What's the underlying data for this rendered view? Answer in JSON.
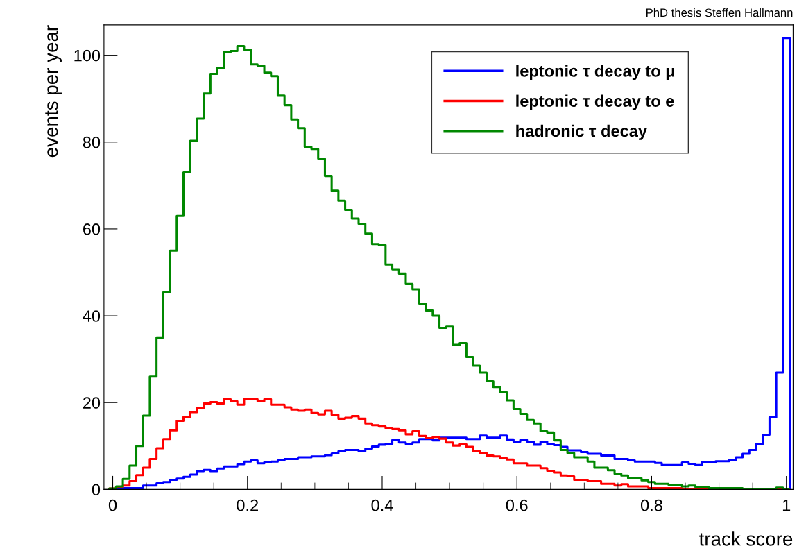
{
  "chart_data": {
    "type": "histogram",
    "xlabel": "track score",
    "ylabel": "events per year",
    "annotations": [
      "PhD thesis Steffen Hallmann"
    ],
    "bins": [
      -0.005,
      0.005,
      0.015,
      0.025,
      0.035,
      0.045,
      0.055,
      0.065,
      0.075,
      0.085,
      0.095,
      0.105,
      0.115,
      0.125,
      0.135,
      0.145,
      0.155,
      0.165,
      0.175,
      0.185,
      0.195,
      0.205,
      0.215,
      0.225,
      0.235,
      0.245,
      0.255,
      0.265,
      0.275,
      0.285,
      0.295,
      0.305,
      0.315,
      0.325,
      0.335,
      0.345,
      0.355,
      0.365,
      0.375,
      0.385,
      0.395,
      0.405,
      0.415,
      0.425,
      0.435,
      0.445,
      0.455,
      0.465,
      0.475,
      0.485,
      0.495,
      0.505,
      0.515,
      0.525,
      0.535,
      0.545,
      0.555,
      0.565,
      0.575,
      0.585,
      0.595,
      0.605,
      0.615,
      0.625,
      0.635,
      0.645,
      0.655,
      0.665,
      0.675,
      0.685,
      0.695,
      0.705,
      0.715,
      0.725,
      0.735,
      0.745,
      0.755,
      0.765,
      0.775,
      0.785,
      0.795,
      0.805,
      0.815,
      0.825,
      0.835,
      0.845,
      0.855,
      0.865,
      0.875,
      0.885,
      0.895,
      0.905,
      0.915,
      0.925,
      0.935,
      0.945,
      0.955,
      0.965,
      0.975,
      0.985,
      0.995,
      1.005
    ],
    "series": [
      {
        "name": "leptonic τ decay to μ",
        "color": "#0000ff",
        "values": [
          0.1,
          0.1,
          0.3,
          0.3,
          0.3,
          0.9,
          0.9,
          1.4,
          1.7,
          2.2,
          2.5,
          2.9,
          3.4,
          4.2,
          4.5,
          4.2,
          4.8,
          5.3,
          5.3,
          5.8,
          6.4,
          6.7,
          6,
          6.3,
          6.4,
          6.7,
          7,
          7,
          7.4,
          7.4,
          7.6,
          7.6,
          7.9,
          8.3,
          8.8,
          9.1,
          9.1,
          8.8,
          9.4,
          9.9,
          10.3,
          10.5,
          11.4,
          10.8,
          10.5,
          10.8,
          11.6,
          11.6,
          11.3,
          11.9,
          11.9,
          11.9,
          11.9,
          11.6,
          11.6,
          12.4,
          11.9,
          11.9,
          12.4,
          11.5,
          11,
          11.4,
          11,
          10.3,
          11,
          10.4,
          10.2,
          9.8,
          9,
          9,
          8.6,
          8.2,
          8.2,
          7.8,
          7.8,
          7,
          7,
          6.7,
          6.4,
          6.4,
          6.4,
          6.1,
          5.6,
          5.6,
          5.6,
          6.2,
          5.9,
          5.6,
          6.3,
          6.3,
          6.5,
          6.5,
          6.8,
          7.4,
          8.2,
          9.1,
          10.5,
          12.6,
          16.6,
          26.9,
          104
        ]
      },
      {
        "name": "leptonic τ decay to e",
        "color": "#ff0000",
        "values": [
          0.2,
          0.5,
          0.9,
          1.9,
          3.3,
          5,
          7,
          9.5,
          11.6,
          13.6,
          15.8,
          16.7,
          17.8,
          18.7,
          19.8,
          20.1,
          19.8,
          20.8,
          20.3,
          19.5,
          20.8,
          20.8,
          20.3,
          20.8,
          19.5,
          19.5,
          18.9,
          18.4,
          18.1,
          18.4,
          17.6,
          17.3,
          18.1,
          17.2,
          16.3,
          16.5,
          16.9,
          16.3,
          15.2,
          14.8,
          14.5,
          14.1,
          13.9,
          13.6,
          12.7,
          13.4,
          12.3,
          11.8,
          12.1,
          11.7,
          10.8,
          10.1,
          10.4,
          9.8,
          8.8,
          8.4,
          7.8,
          7.6,
          7.2,
          6.9,
          6,
          6,
          5.5,
          5.5,
          4.9,
          4.3,
          3.9,
          3.2,
          3,
          2.2,
          2.2,
          1.9,
          1.9,
          1.3,
          1.3,
          0.9,
          1.2,
          0.7,
          0.7,
          0.7,
          0.3,
          0.3,
          0.3,
          0.3,
          0.3,
          0.1,
          0.1,
          0.1,
          0.1,
          0.1,
          0.1,
          0.1,
          0.1,
          0.1,
          0.1,
          0.1,
          0.1,
          0.1,
          0.1,
          0.1,
          0
        ]
      },
      {
        "name": "hadronic τ decay",
        "color": "#008800",
        "values": [
          0.2,
          0.7,
          2.4,
          5.5,
          10,
          17,
          26,
          35,
          45.4,
          55,
          63,
          73,
          80.3,
          85.4,
          91.2,
          95.7,
          97.1,
          100.7,
          101,
          102.1,
          101.3,
          97.9,
          97.6,
          96,
          95.2,
          90.7,
          88.5,
          85.2,
          83.2,
          78.9,
          78.4,
          76.2,
          72.2,
          68.8,
          66.5,
          64.4,
          62.4,
          61.2,
          58.9,
          56.5,
          56.3,
          51.8,
          50.7,
          49.7,
          47.3,
          46.1,
          42.8,
          41.2,
          40,
          37.2,
          37.5,
          33.3,
          33.7,
          30.5,
          28.5,
          26.9,
          24.9,
          23.6,
          22.4,
          20.5,
          18.5,
          17.4,
          16,
          15.2,
          13.4,
          13.1,
          11.3,
          9.1,
          8.4,
          7.4,
          7.4,
          6.4,
          5,
          5,
          4.4,
          3.6,
          3.2,
          2.6,
          2.6,
          2.1,
          1.7,
          1.3,
          1.3,
          1.1,
          1.1,
          0.7,
          0.9,
          0.5,
          0.5,
          0.3,
          0.3,
          0.3,
          0.3,
          0.3,
          0.1,
          0.1,
          0.1,
          0.1,
          0.1,
          0.4,
          0
        ]
      }
    ],
    "xlim": [
      -0.013,
      1.01
    ],
    "ylim": [
      0,
      107
    ],
    "xticks": [
      0,
      0.2,
      0.4,
      0.6,
      0.8,
      1
    ],
    "yticks": [
      0,
      20,
      40,
      60,
      80,
      100
    ],
    "grid": false,
    "legend": "top right"
  }
}
